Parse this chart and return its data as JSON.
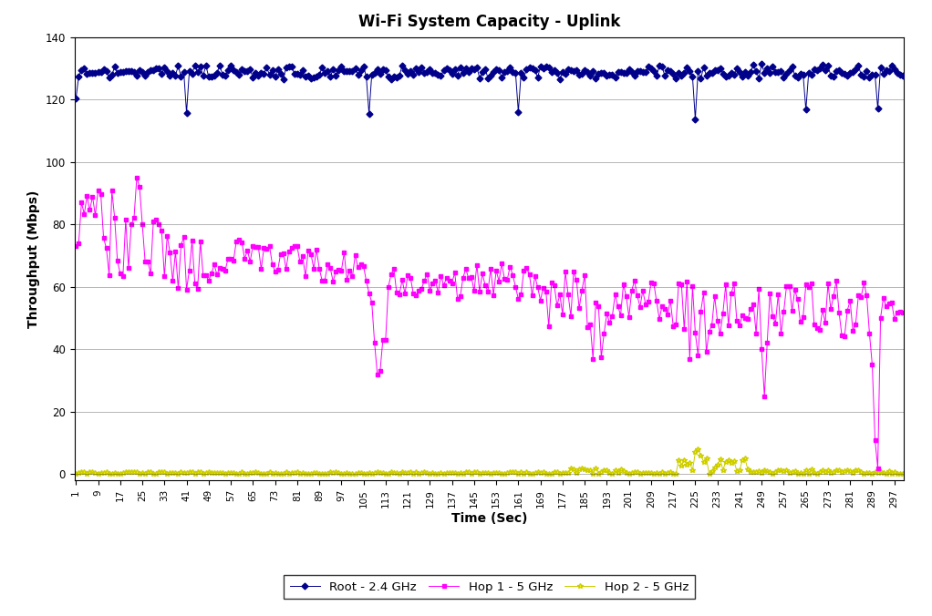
{
  "title": "Wi-Fi System Capacity - Uplink",
  "xlabel": "Time (Sec)",
  "ylabel": "Throughput (Mbps)",
  "ylim": [
    -2,
    140
  ],
  "yticks": [
    0,
    20,
    40,
    60,
    80,
    100,
    120,
    140
  ],
  "background_color": "#ffffff",
  "root_color": "#00008B",
  "hop1_color": "#FF00FF",
  "hop2_color": "#FFFF00",
  "hop2_line_color": "#CCCC00",
  "legend_labels": [
    "Root - 2.4 GHz",
    "Hop 1 - 5 GHz",
    "Hop 2 - 5 GHz"
  ],
  "grid_color": "#000000",
  "grid_alpha": 0.3
}
